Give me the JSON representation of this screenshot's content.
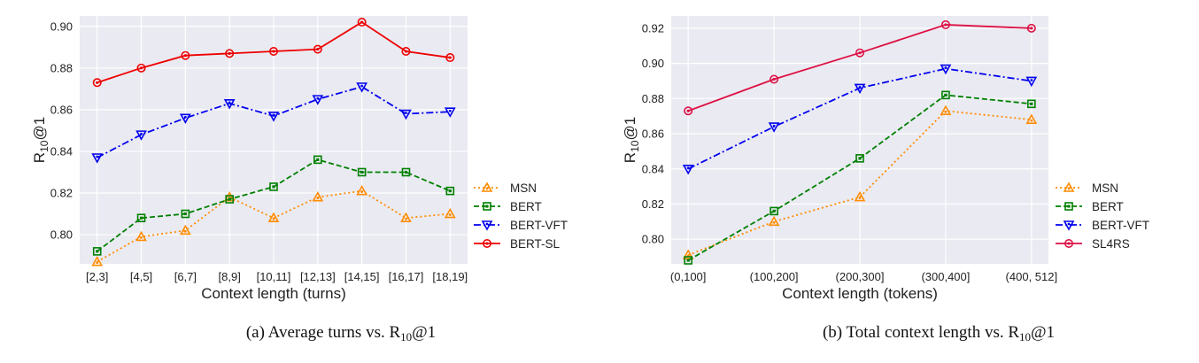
{
  "chart_data": [
    {
      "type": "line",
      "xlabel": "Context length (turns)",
      "ylabel": "R10@1",
      "ylim": [
        0.786,
        0.905
      ],
      "yticks": [
        0.8,
        0.82,
        0.84,
        0.86,
        0.88,
        0.9
      ],
      "grid": true,
      "legend_position": "right",
      "caption": "(a)  Average turns vs. R10@1",
      "categories": [
        "[2,3]",
        "[4,5]",
        "[6,7]",
        "[8,9]",
        "[10,11]",
        "[12,13]",
        "[14,15]",
        "[16,17]",
        "[18,19]"
      ],
      "series": [
        {
          "name": "MSN",
          "color": "#ff8c00",
          "dash": "dotted",
          "marker": "triangle-up",
          "values": [
            0.787,
            0.799,
            0.802,
            0.818,
            0.808,
            0.818,
            0.821,
            0.808,
            0.81
          ]
        },
        {
          "name": "BERT",
          "color": "#008000",
          "dash": "dashed",
          "marker": "square",
          "values": [
            0.792,
            0.808,
            0.81,
            0.817,
            0.823,
            0.836,
            0.83,
            0.83,
            0.821
          ]
        },
        {
          "name": "BERT-VFT",
          "color": "#0000ee",
          "dash": "dashdot",
          "marker": "triangle-down",
          "values": [
            0.837,
            0.848,
            0.856,
            0.863,
            0.857,
            0.865,
            0.871,
            0.858,
            0.859
          ]
        },
        {
          "name": "BERT-SL",
          "color": "#ee0000",
          "dash": "solid",
          "marker": "circle",
          "values": [
            0.873,
            0.88,
            0.886,
            0.887,
            0.888,
            0.889,
            0.902,
            0.888,
            0.885
          ]
        }
      ]
    },
    {
      "type": "line",
      "xlabel": "Context length (tokens)",
      "ylabel": "R10@1",
      "ylim": [
        0.786,
        0.927
      ],
      "yticks": [
        0.8,
        0.82,
        0.84,
        0.86,
        0.88,
        0.9,
        0.92
      ],
      "grid": true,
      "legend_position": "right",
      "caption": "(b) Total context length vs. R10@1",
      "categories": [
        "(0,100]",
        "(100,200]",
        "(200,300]",
        "(300,400]",
        "(400, 512]"
      ],
      "series": [
        {
          "name": "MSN",
          "color": "#ff8c00",
          "dash": "dotted",
          "marker": "triangle-up",
          "values": [
            0.791,
            0.81,
            0.824,
            0.873,
            0.868
          ]
        },
        {
          "name": "BERT",
          "color": "#008000",
          "dash": "dashed",
          "marker": "square",
          "values": [
            0.788,
            0.816,
            0.846,
            0.882,
            0.877
          ]
        },
        {
          "name": "BERT-VFT",
          "color": "#0000ee",
          "dash": "dashdot",
          "marker": "triangle-down",
          "values": [
            0.84,
            0.864,
            0.886,
            0.897,
            0.89
          ]
        },
        {
          "name": "SL4RS",
          "color": "#dd1144",
          "dash": "solid",
          "marker": "circle",
          "values": [
            0.873,
            0.891,
            0.906,
            0.922,
            0.92
          ]
        }
      ]
    }
  ]
}
